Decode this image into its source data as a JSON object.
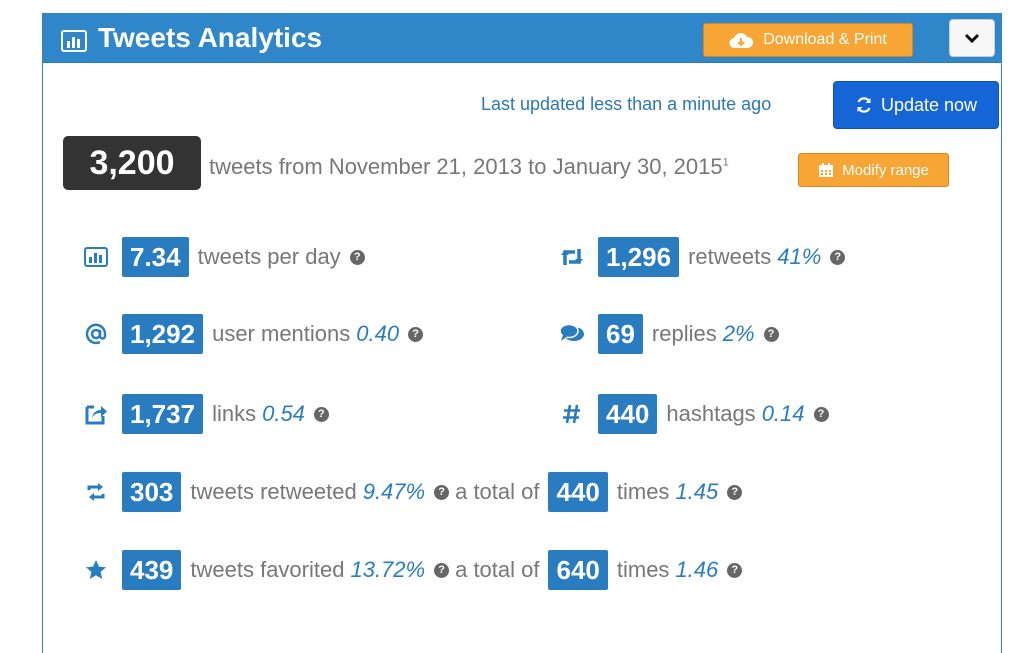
{
  "header": {
    "title": "Tweets Analytics",
    "download_label": "Download & Print",
    "menu_icon": "chevron-down-icon"
  },
  "status": {
    "last_updated": "Last updated less than a minute ago",
    "update_label": "Update now"
  },
  "summary": {
    "total": "3,200",
    "range_text": "tweets from November 21, 2013 to January 30, 2015",
    "footnote": "1",
    "modify_label": "Modify range"
  },
  "stats": {
    "per_day": {
      "value": "7.34",
      "label": "tweets per day",
      "icon": "bar-chart-icon"
    },
    "retweets": {
      "value": "1,296",
      "label": "retweets",
      "pct": "41%",
      "icon": "retweet-icon"
    },
    "mentions": {
      "value": "1,292",
      "label": "user mentions",
      "pct": "0.40",
      "icon": "at-icon"
    },
    "replies": {
      "value": "69",
      "label": "replies",
      "pct": "2%",
      "icon": "comments-icon"
    },
    "links": {
      "value": "1,737",
      "label": "links",
      "pct": "0.54",
      "icon": "share-icon"
    },
    "hashtags": {
      "value": "440",
      "label": "hashtags",
      "pct": "0.14",
      "icon": "hashtag-icon"
    },
    "retweeted": {
      "value": "303",
      "label": "tweets retweeted",
      "pct": "9.47%",
      "mid": "a total of",
      "value2": "440",
      "label2": "times",
      "pct2": "1.45",
      "icon": "retweet-arrows-icon"
    },
    "favorited": {
      "value": "439",
      "label": "tweets favorited",
      "pct": "13.72%",
      "mid": "a total of",
      "value2": "640",
      "label2": "times",
      "pct2": "1.46",
      "icon": "star-icon"
    }
  },
  "help_glyph": "?",
  "colors": {
    "header": "#2f86c8",
    "badge": "#2a7cc1",
    "orange": "#f7a534",
    "update": "#1565d6",
    "total_bg": "#333333"
  }
}
